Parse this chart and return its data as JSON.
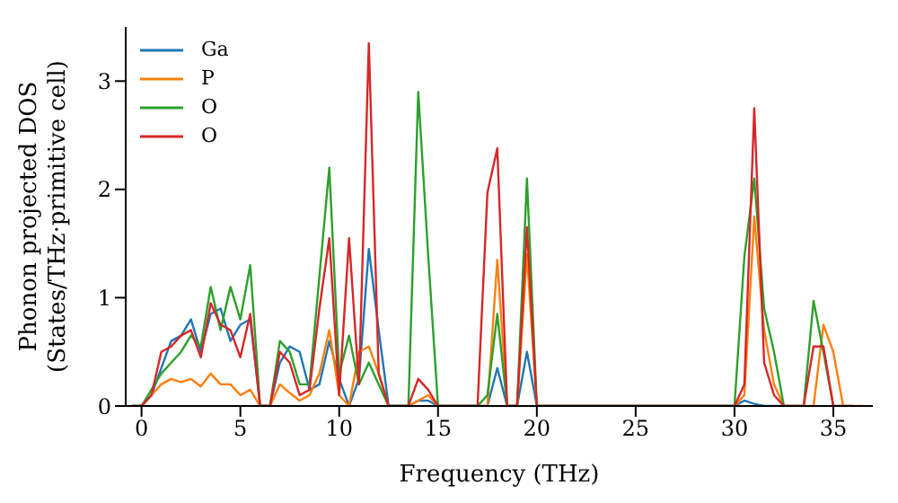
{
  "chart_data": {
    "type": "line",
    "xlabel": "Frequency (THz)",
    "ylabel": "Phonon projected DOS\n(States/THz·primitive cell)",
    "x": [
      -0.5,
      0,
      0.5,
      1,
      1.5,
      2,
      2.5,
      3,
      3.5,
      4,
      4.5,
      5,
      5.5,
      6,
      6.5,
      7,
      7.5,
      8,
      8.5,
      9,
      9.5,
      10,
      10.5,
      11,
      11.5,
      12,
      12.5,
      13,
      13.5,
      14,
      14.5,
      15,
      15.5,
      16,
      16.5,
      17,
      17.5,
      18,
      18.5,
      19,
      19.5,
      20,
      20.5,
      21,
      21.5,
      22,
      22.5,
      23,
      23.5,
      24,
      24.5,
      25,
      25.5,
      26,
      26.5,
      27,
      27.5,
      28,
      28.5,
      29,
      29.5,
      30,
      30.5,
      31,
      31.5,
      32,
      32.5,
      33,
      33.5,
      34,
      34.5,
      35,
      35.5,
      36,
      36.5
    ],
    "series": [
      {
        "name": "Ga",
        "color": "#1f77b4",
        "values": [
          0,
          0,
          0.1,
          0.35,
          0.6,
          0.65,
          0.8,
          0.5,
          0.85,
          0.9,
          0.6,
          0.75,
          0.8,
          0,
          0,
          0.4,
          0.55,
          0.5,
          0.15,
          0.2,
          0.6,
          0.25,
          0,
          0.25,
          1.45,
          0.7,
          0,
          0,
          0,
          0.05,
          0.05,
          0,
          0,
          0,
          0,
          0,
          0,
          0.35,
          0,
          0,
          0.5,
          0,
          0,
          0,
          0,
          0,
          0,
          0,
          0,
          0,
          0,
          0,
          0,
          0,
          0,
          0,
          0,
          0,
          0,
          0,
          0,
          0,
          0.05,
          0.02,
          0,
          0,
          0,
          null,
          null,
          null,
          null,
          null,
          null,
          null,
          null
        ]
      },
      {
        "name": "P",
        "color": "#ff7f0e",
        "values": [
          0,
          0,
          0.1,
          0.2,
          0.25,
          0.22,
          0.25,
          0.18,
          0.3,
          0.2,
          0.2,
          0.1,
          0.15,
          0,
          0,
          0.2,
          0.12,
          0.05,
          0.1,
          0.3,
          0.7,
          0.1,
          0,
          0.5,
          0.55,
          0.3,
          0,
          0,
          0,
          0.05,
          0.1,
          0,
          0,
          0,
          0,
          0,
          0,
          1.35,
          0,
          0,
          1.4,
          0,
          0,
          0,
          0,
          0,
          0,
          0,
          0,
          0,
          0,
          0,
          0,
          0,
          0,
          0,
          0,
          0,
          0,
          0,
          0,
          0,
          0.1,
          1.75,
          0.7,
          0.2,
          0,
          0,
          0,
          0,
          0.75,
          0.5,
          0,
          0,
          0
        ]
      },
      {
        "name": "O",
        "color": "#2ca02c",
        "values": [
          0,
          0,
          0.15,
          0.3,
          0.4,
          0.5,
          0.65,
          0.55,
          1.1,
          0.7,
          1.1,
          0.8,
          1.3,
          0,
          0,
          0.6,
          0.5,
          0.2,
          0.2,
          1.2,
          2.2,
          0.3,
          0.65,
          0.2,
          0.4,
          0.2,
          0,
          0,
          0,
          2.9,
          1.4,
          0,
          0,
          0,
          0,
          0,
          0.1,
          0.85,
          0,
          0,
          2.1,
          0,
          0,
          0,
          0,
          0,
          0,
          0,
          0,
          0,
          0,
          0,
          0,
          0,
          0,
          0,
          0,
          0,
          0,
          0,
          0,
          0,
          1.38,
          2.1,
          0.9,
          0.5,
          0,
          0,
          0,
          0.97,
          0.5,
          0,
          0,
          null,
          null
        ]
      },
      {
        "name": "O",
        "color": "#d62728",
        "values": [
          0,
          0,
          0.1,
          0.5,
          0.55,
          0.65,
          0.7,
          0.45,
          0.95,
          0.75,
          0.7,
          0.45,
          0.85,
          0,
          0,
          0.5,
          0.4,
          0.1,
          0.15,
          0.9,
          1.55,
          0.1,
          1.55,
          0.2,
          3.35,
          0.3,
          0,
          0,
          0,
          0.25,
          0.15,
          0,
          0,
          0,
          0,
          0,
          1.97,
          2.38,
          0,
          0,
          1.65,
          0,
          0,
          0,
          0,
          0,
          0,
          0,
          0,
          0,
          0,
          0,
          0,
          0,
          0,
          0,
          0,
          0,
          0,
          0,
          0,
          0,
          0.2,
          2.75,
          0.4,
          0.1,
          0,
          0,
          0,
          0.55,
          0.55,
          0,
          0,
          0,
          null
        ]
      }
    ],
    "xlim": [
      -0.8,
      37
    ],
    "xticks": [
      0,
      5,
      10,
      15,
      20,
      25,
      30,
      35
    ],
    "ylim": [
      0,
      3.5
    ],
    "yticks": [
      0,
      1,
      2,
      3
    ],
    "grid": false,
    "legend": "top left",
    "marker": "none",
    "line_style": "solid"
  }
}
